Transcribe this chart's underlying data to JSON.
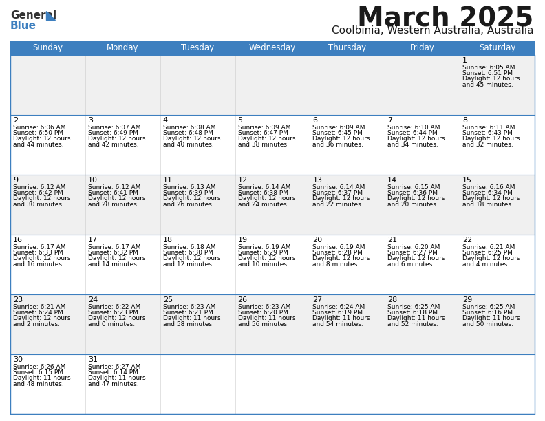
{
  "title": "March 2025",
  "subtitle": "Coolbinia, Western Australia, Australia",
  "header_color": "#3d7fbf",
  "header_text_color": "#ffffff",
  "days_of_week": [
    "Sunday",
    "Monday",
    "Tuesday",
    "Wednesday",
    "Thursday",
    "Friday",
    "Saturday"
  ],
  "background_color": "#ffffff",
  "row_alt_color": "#f0f0f0",
  "row_color": "#ffffff",
  "border_color": "#3d7fbf",
  "cell_text_color": "#000000",
  "cal_data": [
    [
      {
        "day": "",
        "sunrise": "",
        "sunset": "",
        "daylight": ""
      },
      {
        "day": "",
        "sunrise": "",
        "sunset": "",
        "daylight": ""
      },
      {
        "day": "",
        "sunrise": "",
        "sunset": "",
        "daylight": ""
      },
      {
        "day": "",
        "sunrise": "",
        "sunset": "",
        "daylight": ""
      },
      {
        "day": "",
        "sunrise": "",
        "sunset": "",
        "daylight": ""
      },
      {
        "day": "",
        "sunrise": "",
        "sunset": "",
        "daylight": ""
      },
      {
        "day": "1",
        "sunrise": "6:05 AM",
        "sunset": "6:51 PM",
        "daylight": "12 hours and 45 minutes."
      }
    ],
    [
      {
        "day": "2",
        "sunrise": "6:06 AM",
        "sunset": "6:50 PM",
        "daylight": "12 hours and 44 minutes."
      },
      {
        "day": "3",
        "sunrise": "6:07 AM",
        "sunset": "6:49 PM",
        "daylight": "12 hours and 42 minutes."
      },
      {
        "day": "4",
        "sunrise": "6:08 AM",
        "sunset": "6:48 PM",
        "daylight": "12 hours and 40 minutes."
      },
      {
        "day": "5",
        "sunrise": "6:09 AM",
        "sunset": "6:47 PM",
        "daylight": "12 hours and 38 minutes."
      },
      {
        "day": "6",
        "sunrise": "6:09 AM",
        "sunset": "6:45 PM",
        "daylight": "12 hours and 36 minutes."
      },
      {
        "day": "7",
        "sunrise": "6:10 AM",
        "sunset": "6:44 PM",
        "daylight": "12 hours and 34 minutes."
      },
      {
        "day": "8",
        "sunrise": "6:11 AM",
        "sunset": "6:43 PM",
        "daylight": "12 hours and 32 minutes."
      }
    ],
    [
      {
        "day": "9",
        "sunrise": "6:12 AM",
        "sunset": "6:42 PM",
        "daylight": "12 hours and 30 minutes."
      },
      {
        "day": "10",
        "sunrise": "6:12 AM",
        "sunset": "6:41 PM",
        "daylight": "12 hours and 28 minutes."
      },
      {
        "day": "11",
        "sunrise": "6:13 AM",
        "sunset": "6:39 PM",
        "daylight": "12 hours and 26 minutes."
      },
      {
        "day": "12",
        "sunrise": "6:14 AM",
        "sunset": "6:38 PM",
        "daylight": "12 hours and 24 minutes."
      },
      {
        "day": "13",
        "sunrise": "6:14 AM",
        "sunset": "6:37 PM",
        "daylight": "12 hours and 22 minutes."
      },
      {
        "day": "14",
        "sunrise": "6:15 AM",
        "sunset": "6:36 PM",
        "daylight": "12 hours and 20 minutes."
      },
      {
        "day": "15",
        "sunrise": "6:16 AM",
        "sunset": "6:34 PM",
        "daylight": "12 hours and 18 minutes."
      }
    ],
    [
      {
        "day": "16",
        "sunrise": "6:17 AM",
        "sunset": "6:33 PM",
        "daylight": "12 hours and 16 minutes."
      },
      {
        "day": "17",
        "sunrise": "6:17 AM",
        "sunset": "6:32 PM",
        "daylight": "12 hours and 14 minutes."
      },
      {
        "day": "18",
        "sunrise": "6:18 AM",
        "sunset": "6:30 PM",
        "daylight": "12 hours and 12 minutes."
      },
      {
        "day": "19",
        "sunrise": "6:19 AM",
        "sunset": "6:29 PM",
        "daylight": "12 hours and 10 minutes."
      },
      {
        "day": "20",
        "sunrise": "6:19 AM",
        "sunset": "6:28 PM",
        "daylight": "12 hours and 8 minutes."
      },
      {
        "day": "21",
        "sunrise": "6:20 AM",
        "sunset": "6:27 PM",
        "daylight": "12 hours and 6 minutes."
      },
      {
        "day": "22",
        "sunrise": "6:21 AM",
        "sunset": "6:25 PM",
        "daylight": "12 hours and 4 minutes."
      }
    ],
    [
      {
        "day": "23",
        "sunrise": "6:21 AM",
        "sunset": "6:24 PM",
        "daylight": "12 hours and 2 minutes."
      },
      {
        "day": "24",
        "sunrise": "6:22 AM",
        "sunset": "6:23 PM",
        "daylight": "12 hours and 0 minutes."
      },
      {
        "day": "25",
        "sunrise": "6:23 AM",
        "sunset": "6:21 PM",
        "daylight": "11 hours and 58 minutes."
      },
      {
        "day": "26",
        "sunrise": "6:23 AM",
        "sunset": "6:20 PM",
        "daylight": "11 hours and 56 minutes."
      },
      {
        "day": "27",
        "sunrise": "6:24 AM",
        "sunset": "6:19 PM",
        "daylight": "11 hours and 54 minutes."
      },
      {
        "day": "28",
        "sunrise": "6:25 AM",
        "sunset": "6:18 PM",
        "daylight": "11 hours and 52 minutes."
      },
      {
        "day": "29",
        "sunrise": "6:25 AM",
        "sunset": "6:16 PM",
        "daylight": "11 hours and 50 minutes."
      }
    ],
    [
      {
        "day": "30",
        "sunrise": "6:26 AM",
        "sunset": "6:15 PM",
        "daylight": "11 hours and 48 minutes."
      },
      {
        "day": "31",
        "sunrise": "6:27 AM",
        "sunset": "6:14 PM",
        "daylight": "11 hours and 47 minutes."
      },
      {
        "day": "",
        "sunrise": "",
        "sunset": "",
        "daylight": ""
      },
      {
        "day": "",
        "sunrise": "",
        "sunset": "",
        "daylight": ""
      },
      {
        "day": "",
        "sunrise": "",
        "sunset": "",
        "daylight": ""
      },
      {
        "day": "",
        "sunrise": "",
        "sunset": "",
        "daylight": ""
      },
      {
        "day": "",
        "sunrise": "",
        "sunset": "",
        "daylight": ""
      }
    ]
  ],
  "logo_general_color": "#333333",
  "logo_blue_color": "#3d7fbf",
  "title_fontsize": 28,
  "subtitle_fontsize": 11,
  "header_fontsize": 8.5,
  "day_num_fontsize": 8,
  "cell_fontsize": 6.5
}
